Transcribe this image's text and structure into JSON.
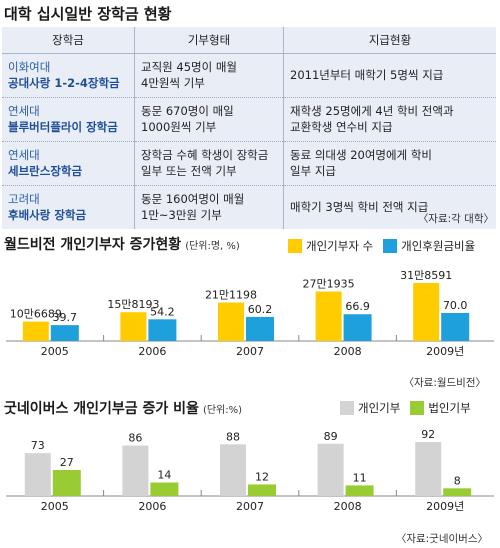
{
  "header": {
    "title": "대학 십시일반 장학금 현황"
  },
  "scholarship_table": {
    "columns": [
      "장학금",
      "기부형태",
      "지급현황"
    ],
    "rows": [
      {
        "school": "이화여대",
        "name": "공대사랑 1-2-4장학금",
        "donation": "교직원 45명이 매월\n4만원씩 기부",
        "status": "2011년부터 매학기 5명씩 지급"
      },
      {
        "school": "연세대",
        "name": "블루버터플라이 장학금",
        "donation": "동문 670명이 매일\n1000원씩 기부",
        "status": "재학생 25명에게 4년 학비 전액과\n교환학생 연수비 지급"
      },
      {
        "school": "연세대",
        "name": "세브란스장학금",
        "donation": "장학금 수혜 학생이 장학금\n일부 또는 전액 기부",
        "status": "동료 의대생 20여명에게 학비\n일부 지급"
      },
      {
        "school": "고려대",
        "name": "후배사랑 장학금",
        "donation": "동문 160여명이 매월\n1만~3만원 기부",
        "status": "매학기 3명씩 학비 전액 지급"
      }
    ],
    "source": "〈자료:각 대학〉"
  },
  "chart_data": [
    {
      "type": "bar",
      "title": "월드비전 개인기부자 증가현황",
      "unit_note": "(단위:명, %)",
      "categories": [
        "2005",
        "2006",
        "2007",
        "2008",
        "2009년"
      ],
      "series": [
        {
          "name": "개인기부자 수",
          "color": "#ffcc00",
          "values": [
            106689,
            158193,
            211198,
            271935,
            318591
          ],
          "labels": [
            "10만6689",
            "15만8193",
            "21만1198",
            "27만1935",
            "31만8591"
          ]
        },
        {
          "name": "개인후원금비율",
          "color": "#1ea0dc",
          "values": [
            39.7,
            54.2,
            60.2,
            66.9,
            70.0
          ],
          "labels": [
            "39.7",
            "54.2",
            "60.2",
            "66.9",
            "70.0"
          ]
        }
      ],
      "source": "〈자료:월드비전〉"
    },
    {
      "type": "bar",
      "title": "굿네이버스 개인기부금 증가 비율",
      "unit_note": "(단위:%)",
      "categories": [
        "2005",
        "2006",
        "2007",
        "2008",
        "2009년"
      ],
      "series": [
        {
          "name": "개인기부",
          "color": "#d3d3d3",
          "values": [
            73,
            86,
            88,
            89,
            92
          ],
          "labels": [
            "73",
            "86",
            "88",
            "89",
            "92"
          ]
        },
        {
          "name": "법인기부",
          "color": "#99cc33",
          "values": [
            27,
            14,
            12,
            11,
            8
          ],
          "labels": [
            "27",
            "14",
            "12",
            "11",
            "8"
          ]
        }
      ],
      "source": "〈자료:굿네이버스〉"
    }
  ]
}
